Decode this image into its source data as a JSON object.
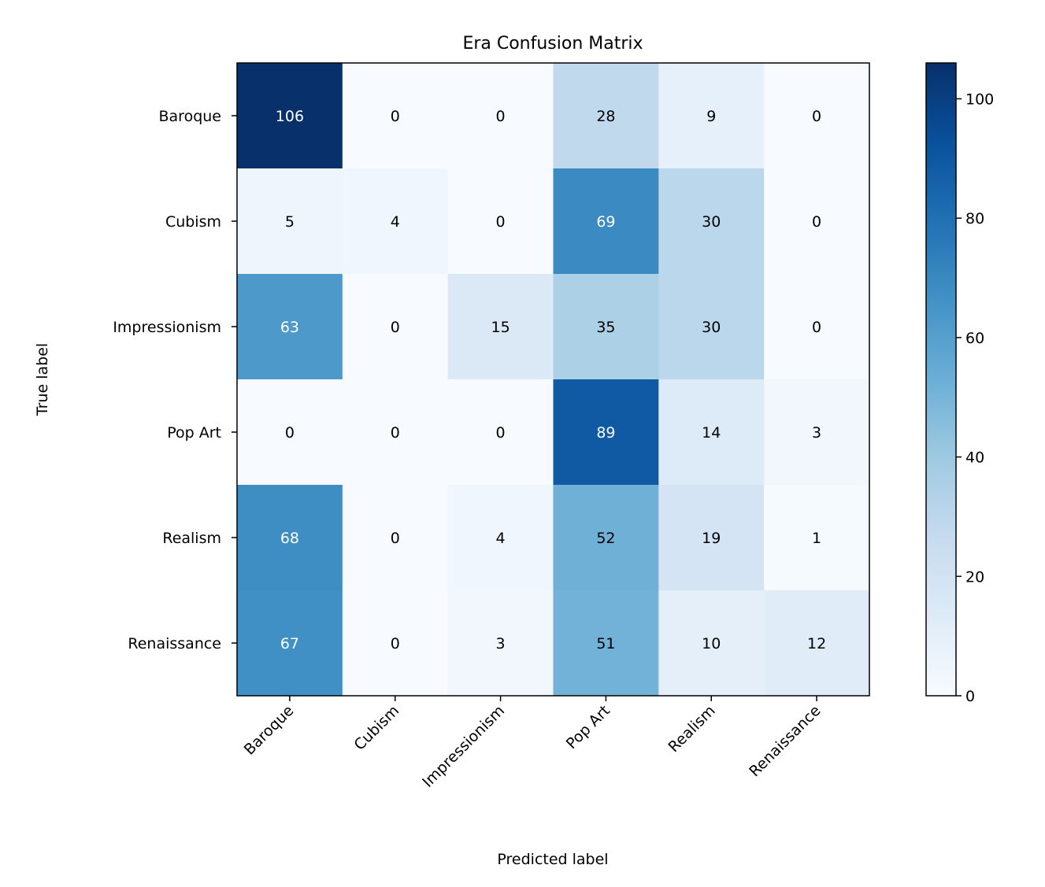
{
  "chart_data": {
    "type": "heatmap",
    "title": "Era Confusion Matrix",
    "xlabel": "Predicted label",
    "ylabel": "True label",
    "x_categories": [
      "Baroque",
      "Cubism",
      "Impressionism",
      "Pop Art",
      "Realism",
      "Renaissance"
    ],
    "y_categories": [
      "Baroque",
      "Cubism",
      "Impressionism",
      "Pop Art",
      "Realism",
      "Renaissance"
    ],
    "values": [
      [
        106,
        0,
        0,
        28,
        9,
        0
      ],
      [
        5,
        4,
        0,
        69,
        30,
        0
      ],
      [
        63,
        0,
        15,
        35,
        30,
        0
      ],
      [
        0,
        0,
        0,
        89,
        14,
        3
      ],
      [
        68,
        0,
        4,
        52,
        19,
        1
      ],
      [
        67,
        0,
        3,
        51,
        10,
        12
      ]
    ],
    "colormap": "Blues",
    "color_range": [
      0,
      106
    ],
    "colorbar_ticks": [
      "0",
      "20",
      "40",
      "60",
      "80",
      "100"
    ],
    "colorbar_tick_values": [
      0,
      20,
      40,
      60,
      80,
      100
    ],
    "text_colors": {
      "dark_cell": "#ffffff",
      "light_cell": "#000000"
    },
    "grid": false
  }
}
